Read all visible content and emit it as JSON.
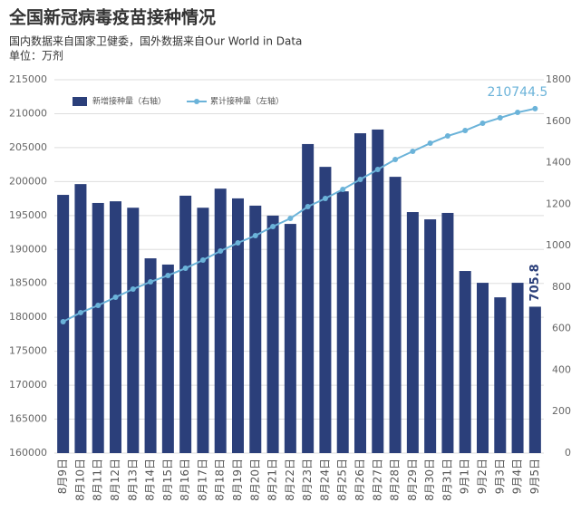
{
  "chart_data": {
    "type": "bar",
    "title": "全国新冠病毒疫苗接种情况",
    "subtitle": "国内数据来自国家卫健委，国外数据来自Our World in Data",
    "unit": "单位：万剂",
    "categories": [
      "8月9日",
      "8月10日",
      "8月11日",
      "8月12日",
      "8月13日",
      "8月14日",
      "8月15日",
      "8月16日",
      "8月17日",
      "8月18日",
      "8月19日",
      "8月20日",
      "8月21日",
      "8月22日",
      "8月23日",
      "8月24日",
      "8月25日",
      "8月26日",
      "8月27日",
      "8月28日",
      "8月29日",
      "8月30日",
      "8月31日",
      "9月1日",
      "9月2日",
      "9月3日",
      "9月4日",
      "9月5日"
    ],
    "series": [
      {
        "name": "新增接种量（右轴）",
        "type": "bar",
        "axis": "y2",
        "color": "#2b3f7a",
        "values": [
          1245,
          1297,
          1206,
          1214,
          1183,
          939,
          909,
          1241,
          1183,
          1275,
          1228,
          1193,
          1145,
          1105,
          1490,
          1380,
          1262,
          1542,
          1560,
          1332,
          1162,
          1127,
          1158,
          878,
          821,
          751,
          821,
          705.8
        ]
      },
      {
        "name": "累计接种量（左轴）",
        "type": "line",
        "axis": "y",
        "color": "#6bb3d9",
        "values": [
          179360,
          180700,
          181760,
          182960,
          184160,
          185230,
          186170,
          187230,
          188430,
          189770,
          190970,
          192040,
          193370,
          194570,
          196310,
          197510,
          198850,
          200320,
          201780,
          203250,
          204450,
          205650,
          206720,
          207520,
          208590,
          209390,
          210190,
          210744.5
        ]
      }
    ],
    "ylim": [
      160000,
      215000
    ],
    "yticks": [
      160000,
      165000,
      170000,
      175000,
      180000,
      185000,
      190000,
      195000,
      200000,
      205000,
      210000,
      215000
    ],
    "y2lim": [
      0,
      1800
    ],
    "y2ticks": [
      0,
      200,
      400,
      600,
      800,
      1000,
      1200,
      1400,
      1600,
      1800
    ],
    "grid": true
  }
}
